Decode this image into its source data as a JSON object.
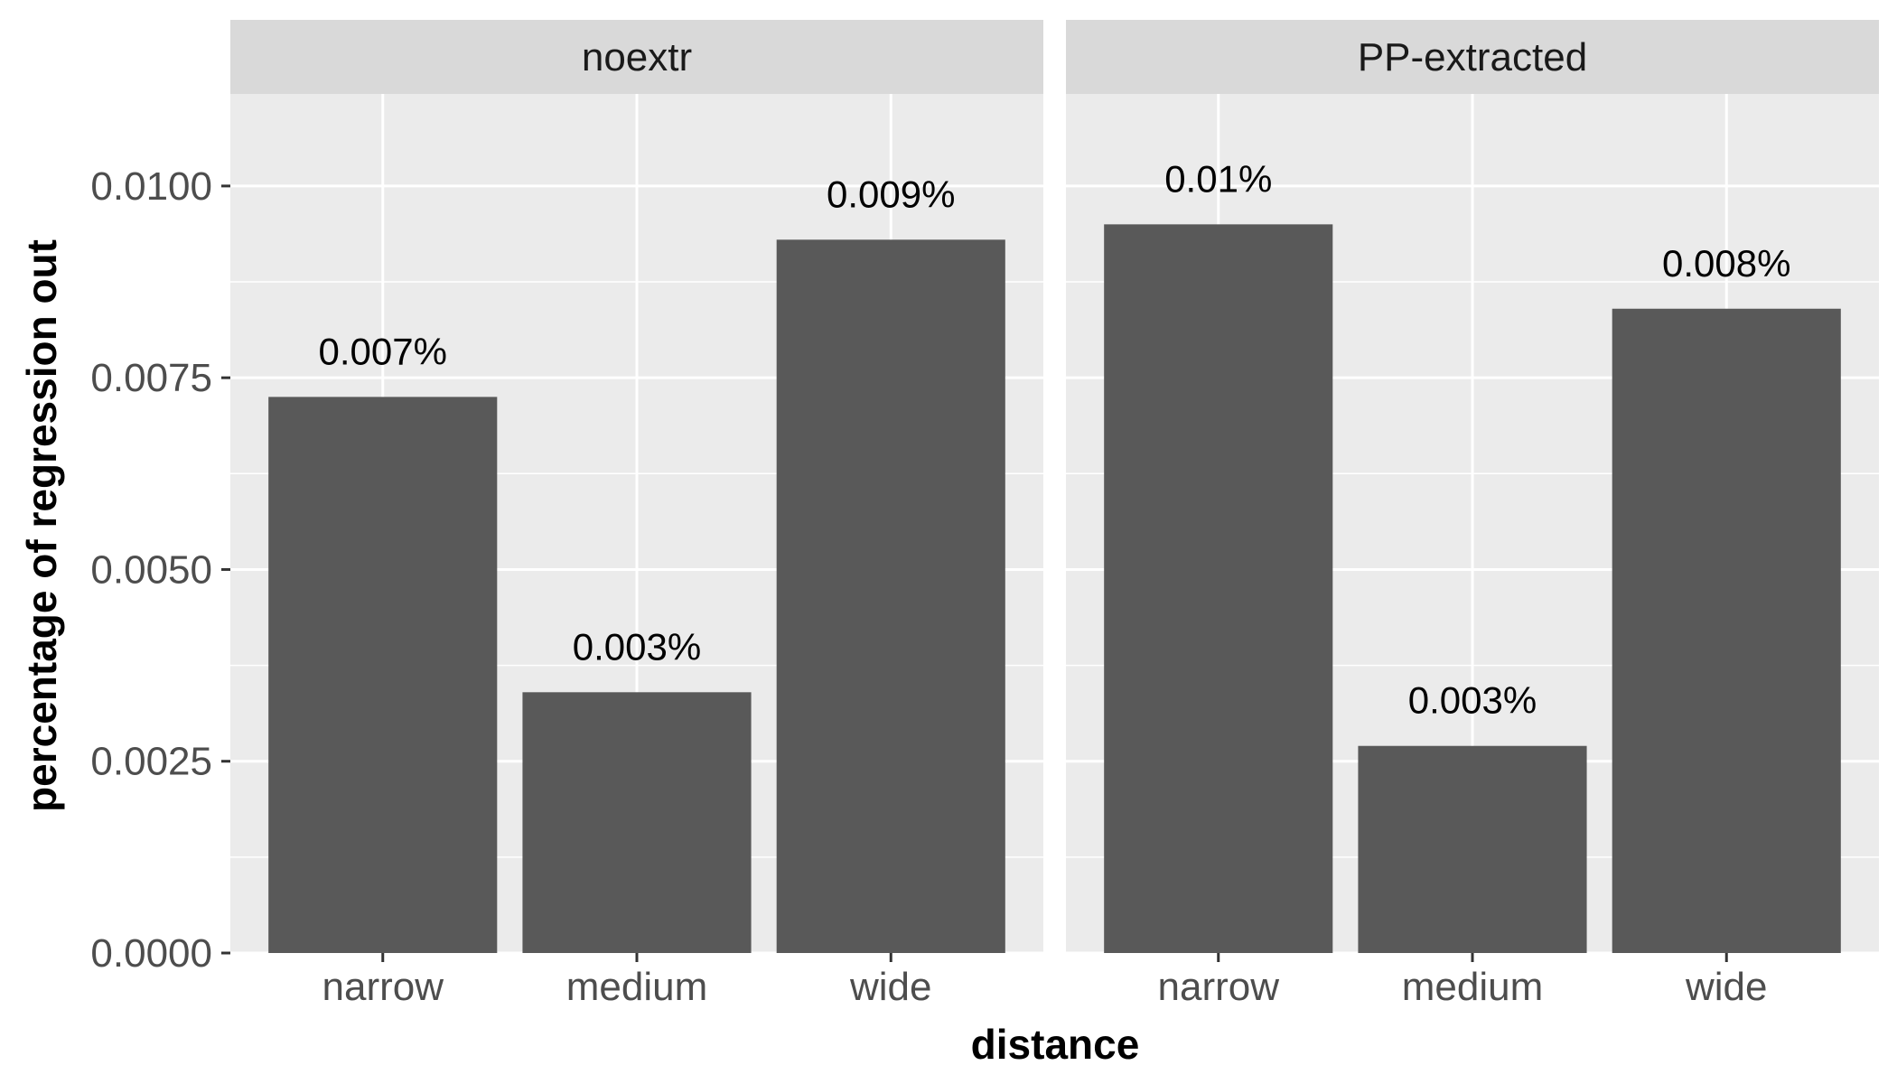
{
  "chart_data": {
    "type": "bar",
    "xlabel": "distance",
    "ylabel": "percentage of regression out",
    "ylim": [
      0,
      0.0112
    ],
    "yticks": [
      "0.0000",
      "0.0025",
      "0.0050",
      "0.0075",
      "0.0100"
    ],
    "ytick_values": [
      0,
      0.0025,
      0.005,
      0.0075,
      0.01
    ],
    "categories": [
      "narrow",
      "medium",
      "wide"
    ],
    "grid": true,
    "legend": "none",
    "colors": {
      "bar": "#595959",
      "panel": "#ebebeb",
      "strip": "#d9d9d9",
      "grid": "#ffffff"
    },
    "facets": [
      {
        "name": "noextr",
        "values": [
          0.00725,
          0.0034,
          0.0093
        ],
        "labels": [
          "0.007%",
          "0.003%",
          "0.009%"
        ]
      },
      {
        "name": "PP-extracted",
        "values": [
          0.0095,
          0.0027,
          0.0084
        ],
        "labels": [
          "0.01%",
          "0.003%",
          "0.008%"
        ]
      }
    ]
  }
}
